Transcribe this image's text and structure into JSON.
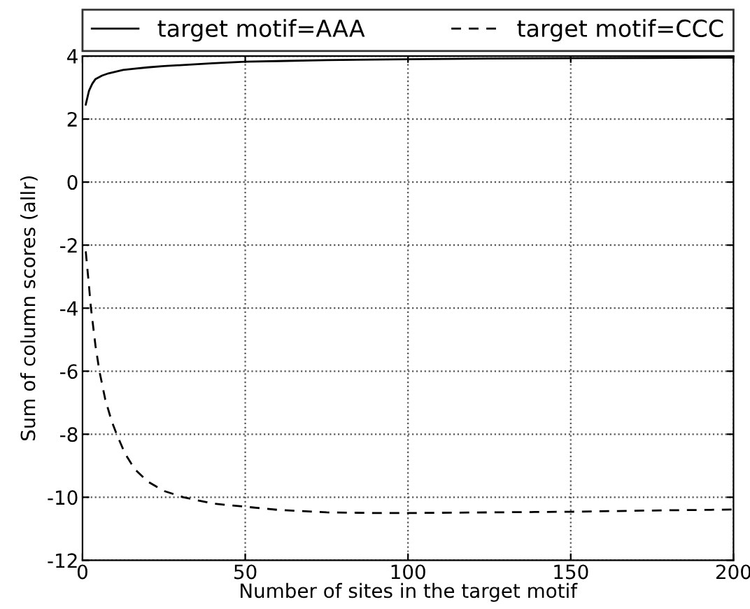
{
  "chart_data": {
    "type": "line",
    "xlabel": "Number of sites in the target motif",
    "ylabel": "Sum of column scores (allr)",
    "xlim": [
      0,
      200
    ],
    "ylim": [
      -12,
      4
    ],
    "xticks": [
      0,
      50,
      100,
      150,
      200
    ],
    "yticks": [
      -12,
      -10,
      -8,
      -6,
      -4,
      -2,
      0,
      2,
      4
    ],
    "grid": true,
    "legend": "top",
    "series": [
      {
        "name": "target motif=AAA",
        "color": "#000000",
        "line_style": "solid",
        "x": [
          1,
          2,
          3,
          4,
          6,
          8,
          10,
          12.5,
          16,
          20,
          25,
          30,
          40,
          50,
          60,
          75,
          100,
          125,
          150,
          175,
          200
        ],
        "values": [
          2.46,
          2.9,
          3.12,
          3.27,
          3.38,
          3.45,
          3.5,
          3.56,
          3.6,
          3.64,
          3.68,
          3.71,
          3.77,
          3.82,
          3.84,
          3.87,
          3.9,
          3.92,
          3.93,
          3.94,
          3.95
        ]
      },
      {
        "name": "target motif=CCC",
        "color": "#000000",
        "line_style": "dashed",
        "x": [
          1,
          2,
          2.6,
          4,
          5.2,
          7,
          9,
          10.5,
          13,
          16,
          20,
          25,
          31,
          40,
          50,
          60,
          75,
          90,
          100,
          125,
          150,
          175,
          200
        ],
        "values": [
          -2.2,
          -3.3,
          -4.0,
          -5.2,
          -6.0,
          -6.9,
          -7.6,
          -8.0,
          -8.6,
          -9.1,
          -9.5,
          -9.8,
          -10.0,
          -10.2,
          -10.3,
          -10.4,
          -10.48,
          -10.5,
          -10.5,
          -10.48,
          -10.46,
          -10.42,
          -10.39
        ]
      }
    ]
  }
}
